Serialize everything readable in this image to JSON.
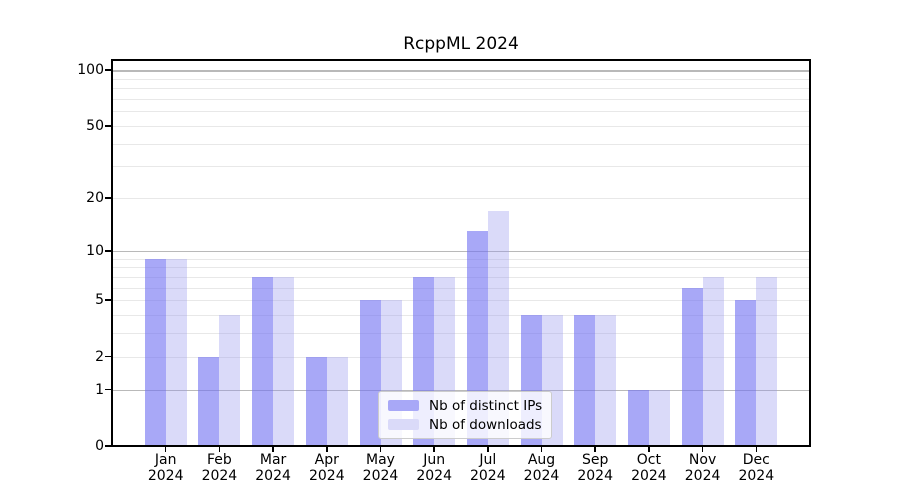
{
  "title": "RcppML 2024",
  "legend": {
    "position": "lower center",
    "items": [
      {
        "label": "Nb of distinct IPs",
        "color": "#a8a8f7"
      },
      {
        "label": "Nb of downloads",
        "color": "#dadaf9"
      }
    ]
  },
  "chart_data": {
    "type": "bar",
    "title": "RcppML 2024",
    "categories": [
      "Jan",
      "Feb",
      "Mar",
      "Apr",
      "May",
      "Jun",
      "Jul",
      "Aug",
      "Sep",
      "Oct",
      "Nov",
      "Dec"
    ],
    "x_sublabel": "2024",
    "series": [
      {
        "name": "Nb of distinct IPs",
        "color": "#a8a8f7",
        "fill": "rgba(115,115,242,0.62)",
        "values": [
          9,
          2,
          7,
          2,
          5,
          7,
          13,
          4,
          4,
          1,
          6,
          5
        ]
      },
      {
        "name": "Nb of downloads",
        "color": "#dadaf9",
        "fill": "rgba(149,149,238,0.35)",
        "values": [
          9,
          4,
          7,
          2,
          5,
          7,
          17,
          4,
          4,
          1,
          7,
          7
        ]
      }
    ],
    "xlabel": "",
    "ylabel": "",
    "y_scale": "log10(1+x)",
    "ylim": [
      0,
      115
    ],
    "y_ticks": [
      0,
      1,
      2,
      5,
      10,
      20,
      50,
      100
    ],
    "gridlines": {
      "major": [
        1,
        10,
        100
      ],
      "minor": [
        2,
        3,
        4,
        5,
        6,
        7,
        8,
        9,
        20,
        30,
        40,
        50,
        60,
        70,
        80,
        90
      ]
    },
    "grid": true,
    "legend_position": "lower center",
    "colors": {
      "grid_major": "#b9b9b9",
      "grid_minor": "#e8e8e8",
      "axis": "#000000",
      "background": "#ffffff"
    }
  }
}
